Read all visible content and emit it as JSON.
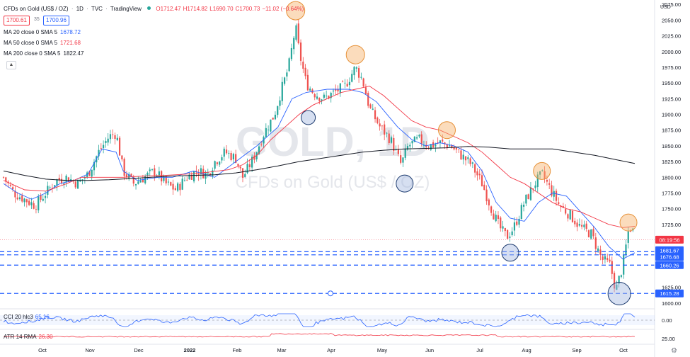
{
  "header": {
    "symbol": "CFDs on Gold (US$ / OZ)",
    "interval": "1D",
    "source": "TVC",
    "platform": "TradingView",
    "ohlc": [
      {
        "key": "O",
        "value": "1712.47"
      },
      {
        "key": "H",
        "value": "1714.82"
      },
      {
        "key": "L",
        "value": "1690.70"
      },
      {
        "key": "C",
        "value": "1700.73"
      },
      {
        "key": "",
        "value": "−11.02 (−0.64%)"
      }
    ],
    "bid": "1700.61",
    "spread": "35",
    "ask": "1700.96"
  },
  "indicators": [
    {
      "label": "MA 20 close 0 SMA 5",
      "value": "1678.72",
      "color": "#2962ff"
    },
    {
      "label": "MA 50 close 0 SMA 5",
      "value": "1721.68",
      "color": "#f23645"
    },
    {
      "label": "MA 200 close 0 SMA 5",
      "value": "1822.47",
      "color": "#131722"
    }
  ],
  "watermark": {
    "big": "GOLD, 1D",
    "small": "CFDs on Gold (US$ / OZ)"
  },
  "countdown": "08:19:56",
  "currency": "USD",
  "price_axis_ticks": [
    "2075.00",
    "2050.00",
    "2025.00",
    "2000.00",
    "1975.00",
    "1950.00",
    "1925.00",
    "1900.00",
    "1875.00",
    "1850.00",
    "1825.00",
    "1800.00",
    "1775.00",
    "1750.00",
    "1725.00",
    "1625.00",
    "1600.00"
  ],
  "time_axis_labels": [
    "Oct",
    "Nov",
    "Dec",
    "2022",
    "Feb",
    "Mar",
    "Apr",
    "May",
    "Jun",
    "Jul",
    "Aug",
    "Sep",
    "Oct"
  ],
  "cci": {
    "label": "CCI 20 hlc3",
    "value": "65.16",
    "tick": "0.00"
  },
  "atr": {
    "label": "ATR 14 RMA",
    "value": "26.30",
    "tick": "25.00"
  },
  "colors": {
    "up": "#26a69a",
    "down": "#ef5350",
    "ma20": "#2962ff",
    "ma50": "#f23645",
    "ma200": "#131722",
    "support": "#2962ff",
    "marker_orange": "#f6b26b",
    "marker_blue": "#a4b8e0",
    "cci": "#2962ff",
    "atr": "#f23645"
  },
  "chart_data": {
    "type": "candlestick",
    "x_range": [
      "2021-09-24",
      "2022-10-07"
    ],
    "y_range": [
      1593,
      2082
    ],
    "series": [
      {
        "name": "MA 20 close 0 SMA 5",
        "points": [
          [
            0,
            1790
          ],
          [
            20,
            1775
          ],
          [
            40,
            1765
          ],
          [
            60,
            1775
          ],
          [
            80,
            1790
          ],
          [
            100,
            1795
          ],
          [
            120,
            1805
          ],
          [
            140,
            1845
          ],
          [
            160,
            1840
          ],
          [
            170,
            1810
          ],
          [
            190,
            1795
          ],
          [
            220,
            1800
          ],
          [
            240,
            1800
          ],
          [
            270,
            1810
          ],
          [
            300,
            1800
          ],
          [
            330,
            1825
          ],
          [
            360,
            1850
          ],
          [
            390,
            1880
          ],
          [
            410,
            1925
          ],
          [
            430,
            1935
          ],
          [
            460,
            1940
          ],
          [
            490,
            1940
          ],
          [
            510,
            1935
          ],
          [
            530,
            1920
          ],
          [
            560,
            1880
          ],
          [
            580,
            1860
          ],
          [
            600,
            1850
          ],
          [
            620,
            1855
          ],
          [
            640,
            1850
          ],
          [
            660,
            1840
          ],
          [
            680,
            1810
          ],
          [
            700,
            1760
          ],
          [
            720,
            1735
          ],
          [
            740,
            1730
          ],
          [
            760,
            1760
          ],
          [
            780,
            1775
          ],
          [
            800,
            1770
          ],
          [
            820,
            1745
          ],
          [
            840,
            1720
          ],
          [
            860,
            1690
          ],
          [
            880,
            1670
          ],
          [
            897,
            1680
          ]
        ]
      },
      {
        "name": "MA 50 close 0 SMA 5",
        "points": [
          [
            0,
            1795
          ],
          [
            30,
            1780
          ],
          [
            60,
            1778
          ],
          [
            90,
            1790
          ],
          [
            110,
            1800
          ],
          [
            140,
            1800
          ],
          [
            170,
            1800
          ],
          [
            200,
            1802
          ],
          [
            230,
            1803
          ],
          [
            260,
            1805
          ],
          [
            290,
            1808
          ],
          [
            320,
            1812
          ],
          [
            340,
            1820
          ],
          [
            360,
            1835
          ],
          [
            380,
            1860
          ],
          [
            400,
            1880
          ],
          [
            420,
            1900
          ],
          [
            440,
            1915
          ],
          [
            460,
            1925
          ],
          [
            480,
            1935
          ],
          [
            500,
            1940
          ],
          [
            520,
            1945
          ],
          [
            540,
            1930
          ],
          [
            560,
            1910
          ],
          [
            580,
            1890
          ],
          [
            600,
            1880
          ],
          [
            620,
            1875
          ],
          [
            640,
            1865
          ],
          [
            660,
            1855
          ],
          [
            680,
            1840
          ],
          [
            700,
            1820
          ],
          [
            720,
            1800
          ],
          [
            740,
            1790
          ],
          [
            760,
            1775
          ],
          [
            780,
            1760
          ],
          [
            800,
            1750
          ],
          [
            820,
            1745
          ],
          [
            840,
            1735
          ],
          [
            860,
            1725
          ],
          [
            880,
            1720
          ],
          [
            897,
            1722
          ]
        ]
      },
      {
        "name": "MA 200 close 0 SMA 5",
        "points": [
          [
            0,
            1810
          ],
          [
            30,
            1803
          ],
          [
            60,
            1797
          ],
          [
            90,
            1795
          ],
          [
            120,
            1795
          ],
          [
            150,
            1796
          ],
          [
            180,
            1798
          ],
          [
            210,
            1800
          ],
          [
            240,
            1802
          ],
          [
            270,
            1803
          ],
          [
            300,
            1804
          ],
          [
            330,
            1807
          ],
          [
            360,
            1812
          ],
          [
            390,
            1818
          ],
          [
            420,
            1825
          ],
          [
            450,
            1830
          ],
          [
            480,
            1835
          ],
          [
            510,
            1840
          ],
          [
            540,
            1843
          ],
          [
            570,
            1845
          ],
          [
            600,
            1846
          ],
          [
            630,
            1847
          ],
          [
            660,
            1849
          ],
          [
            690,
            1848
          ],
          [
            720,
            1845
          ],
          [
            750,
            1845
          ],
          [
            780,
            1845
          ],
          [
            810,
            1840
          ],
          [
            840,
            1835
          ],
          [
            870,
            1828
          ],
          [
            897,
            1822
          ]
        ]
      }
    ],
    "close_series": [
      [
        0,
        1800
      ],
      [
        15,
        1775
      ],
      [
        30,
        1765
      ],
      [
        45,
        1755
      ],
      [
        60,
        1775
      ],
      [
        75,
        1795
      ],
      [
        90,
        1800
      ],
      [
        105,
        1790
      ],
      [
        120,
        1805
      ],
      [
        135,
        1840
      ],
      [
        150,
        1865
      ],
      [
        160,
        1870
      ],
      [
        170,
        1810
      ],
      [
        185,
        1790
      ],
      [
        200,
        1800
      ],
      [
        215,
        1810
      ],
      [
        230,
        1790
      ],
      [
        245,
        1780
      ],
      [
        260,
        1800
      ],
      [
        275,
        1810
      ],
      [
        290,
        1805
      ],
      [
        300,
        1825
      ],
      [
        315,
        1840
      ],
      [
        330,
        1830
      ],
      [
        340,
        1800
      ],
      [
        355,
        1830
      ],
      [
        370,
        1870
      ],
      [
        385,
        1900
      ],
      [
        395,
        1940
      ],
      [
        405,
        1975
      ],
      [
        415,
        2040
      ],
      [
        420,
        2000
      ],
      [
        430,
        1950
      ],
      [
        440,
        1935
      ],
      [
        455,
        1925
      ],
      [
        470,
        1935
      ],
      [
        485,
        1945
      ],
      [
        500,
        1975
      ],
      [
        510,
        1955
      ],
      [
        520,
        1910
      ],
      [
        535,
        1880
      ],
      [
        550,
        1860
      ],
      [
        565,
        1820
      ],
      [
        575,
        1850
      ],
      [
        590,
        1860
      ],
      [
        605,
        1850
      ],
      [
        620,
        1855
      ],
      [
        635,
        1850
      ],
      [
        650,
        1835
      ],
      [
        665,
        1820
      ],
      [
        680,
        1790
      ],
      [
        695,
        1745
      ],
      [
        705,
        1720
      ],
      [
        715,
        1705
      ],
      [
        725,
        1720
      ],
      [
        740,
        1760
      ],
      [
        755,
        1790
      ],
      [
        765,
        1805
      ],
      [
        775,
        1785
      ],
      [
        790,
        1755
      ],
      [
        805,
        1740
      ],
      [
        820,
        1720
      ],
      [
        835,
        1710
      ],
      [
        850,
        1670
      ],
      [
        862,
        1660
      ],
      [
        870,
        1620
      ],
      [
        880,
        1660
      ],
      [
        888,
        1715
      ],
      [
        893,
        1722
      ],
      [
        897,
        1700
      ]
    ],
    "levels": [
      1681.67,
      1676.68,
      1660.26,
      1615.28
    ],
    "current": 1700.73
  }
}
